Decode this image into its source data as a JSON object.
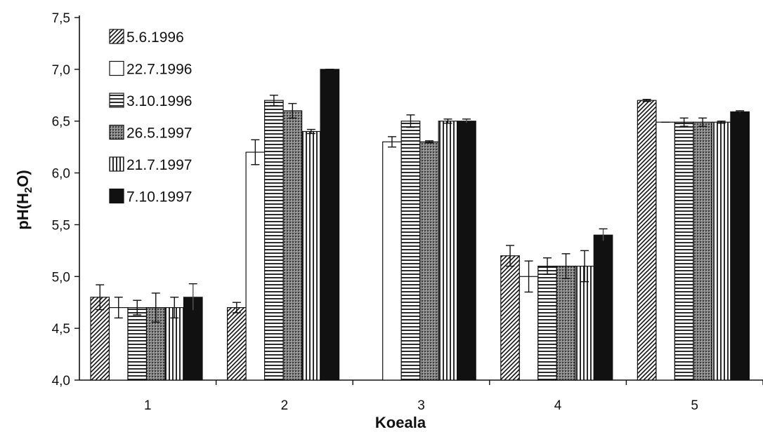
{
  "chart_data": {
    "type": "bar",
    "xlabel": "Koeala",
    "ylabel_main": "pH(H",
    "ylabel_sub": "2",
    "ylabel_tail": "O)",
    "ylim": [
      4.0,
      7.5
    ],
    "yticks": [
      "4,0",
      "4,5",
      "5,0",
      "5,5",
      "6,0",
      "6,5",
      "7,0",
      "7,5"
    ],
    "categories": [
      "1",
      "2",
      "3",
      "4",
      "5"
    ],
    "legend_position": "top-left",
    "series": [
      {
        "name": "5.6.1996",
        "pattern": "diagonal",
        "values": [
          4.8,
          4.7,
          null,
          5.2,
          6.7
        ],
        "errors": [
          0.12,
          0.05,
          null,
          0.1,
          0.01
        ]
      },
      {
        "name": "22.7.1996",
        "pattern": "white",
        "values": [
          4.7,
          6.2,
          6.3,
          5.0,
          6.49
        ],
        "errors": [
          0.1,
          0.12,
          0.05,
          0.15,
          0.0
        ]
      },
      {
        "name": "3.10.1996",
        "pattern": "horizontal",
        "values": [
          4.7,
          6.7,
          6.5,
          5.1,
          6.49
        ],
        "errors": [
          0.07,
          0.05,
          0.06,
          0.08,
          0.04
        ]
      },
      {
        "name": "26.5.1997",
        "pattern": "dotted",
        "values": [
          4.7,
          6.6,
          6.3,
          5.1,
          6.49
        ],
        "errors": [
          0.14,
          0.07,
          0.01,
          0.12,
          0.04
        ]
      },
      {
        "name": "21.7.1997",
        "pattern": "vertical",
        "values": [
          4.7,
          6.4,
          6.5,
          5.1,
          6.49
        ],
        "errors": [
          0.1,
          0.02,
          0.02,
          0.15,
          0.01
        ]
      },
      {
        "name": "7.10.1997",
        "pattern": "black",
        "values": [
          4.8,
          7.0,
          6.5,
          5.4,
          6.59
        ],
        "errors": [
          0.13,
          0.0,
          0.02,
          0.06,
          0.01
        ]
      }
    ]
  }
}
